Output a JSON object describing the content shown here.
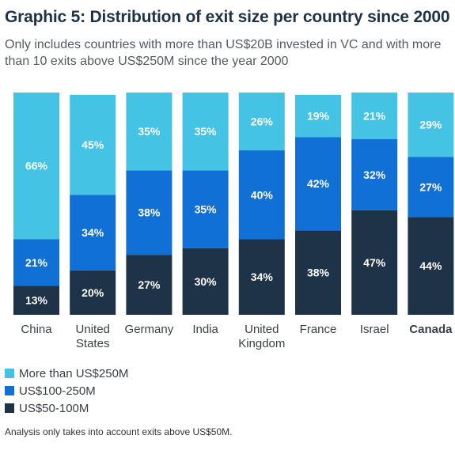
{
  "header": {
    "title": "Graphic 5: Distribution of exit size per country since 2000",
    "subtitle": "Only includes countries with more than US$20B invested in VC and with more than 10 exits above US$250M since the year 2000"
  },
  "chart_data": {
    "type": "bar",
    "stacked": true,
    "categories": [
      "China",
      "United States",
      "Germany",
      "India",
      "United Kingdom",
      "France",
      "Israel",
      "Canada"
    ],
    "highlighted_category": "Canada",
    "ylim": [
      0,
      100
    ],
    "grid": false,
    "legend_position": "bottom-left",
    "series": [
      {
        "name": "US$50-100M",
        "color": "#1f3348",
        "values": [
          13,
          20,
          27,
          30,
          34,
          38,
          47,
          44
        ],
        "labels": [
          "13%",
          "20%",
          "27%",
          "30%",
          "34%",
          "38%",
          "47%",
          "44%"
        ]
      },
      {
        "name": "US$100-250M",
        "color": "#1170d6",
        "values": [
          21,
          34,
          38,
          35,
          40,
          42,
          32,
          27
        ],
        "labels": [
          "21%",
          "34%",
          "38%",
          "35%",
          "40%",
          "42%",
          "32%",
          "27%"
        ]
      },
      {
        "name": "More than US$250M",
        "color": "#45c3e4",
        "values": [
          66,
          45,
          35,
          35,
          26,
          19,
          21,
          29
        ],
        "labels": [
          "66%",
          "45%",
          "35%",
          "35%",
          "26%",
          "19%",
          "21%",
          "29%"
        ]
      }
    ]
  },
  "legend": [
    {
      "label": "More than US$250M",
      "color": "#45c3e4"
    },
    {
      "label": "US$100-250M",
      "color": "#1170d6"
    },
    {
      "label": "US$50-100M",
      "color": "#1f3348"
    }
  ],
  "footnote": "Analysis only takes into account exits above US$50M."
}
